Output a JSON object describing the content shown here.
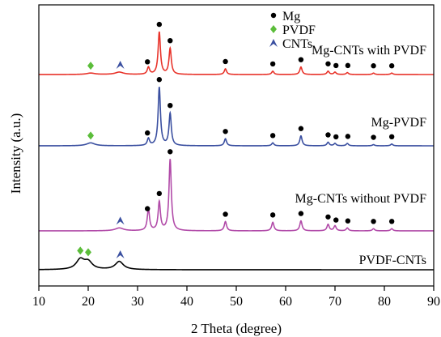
{
  "chart_data": {
    "type": "line",
    "xlabel": "2 Theta (degree)",
    "ylabel": "Intensity (a.u.)",
    "xlim": [
      10,
      90
    ],
    "x_ticks": [
      "10",
      "20",
      "30",
      "40",
      "50",
      "60",
      "70",
      "80",
      "90"
    ],
    "legend": [
      {
        "label": "Mg",
        "marker": "circle",
        "color": "#000000"
      },
      {
        "label": "PVDF",
        "marker": "diamond",
        "color": "#5bbd3a"
      },
      {
        "label": "CNTs",
        "marker": "arrow",
        "color": "#3a4fa0"
      }
    ],
    "legend_position": "top-center",
    "series": [
      {
        "name": "Mg-CNTs with PVDF",
        "color": "#e8332a",
        "baseline": 0.0,
        "peaks": [
          {
            "x": 20.5,
            "h": 0.03
          },
          {
            "x": 26.3,
            "h": 0.05
          },
          {
            "x": 32.2,
            "h": 0.15
          },
          {
            "x": 34.4,
            "h": 0.9
          },
          {
            "x": 36.6,
            "h": 0.55
          },
          {
            "x": 47.8,
            "h": 0.12
          },
          {
            "x": 57.4,
            "h": 0.07
          },
          {
            "x": 63.1,
            "h": 0.16
          },
          {
            "x": 68.6,
            "h": 0.07
          },
          {
            "x": 70.0,
            "h": 0.05
          },
          {
            "x": 72.5,
            "h": 0.04
          },
          {
            "x": 77.8,
            "h": 0.03
          },
          {
            "x": 81.5,
            "h": 0.03
          }
        ],
        "markers": [
          {
            "type": "diamond",
            "x": 20.5
          },
          {
            "type": "arrow",
            "x": 26.5
          },
          {
            "type": "circle",
            "x": 32.0
          },
          {
            "type": "circle",
            "x": 34.4
          },
          {
            "type": "circle",
            "x": 36.6
          },
          {
            "type": "circle",
            "x": 47.8
          },
          {
            "type": "circle",
            "x": 57.4
          },
          {
            "type": "circle",
            "x": 63.1
          },
          {
            "type": "circle",
            "x": 68.6
          },
          {
            "type": "circle",
            "x": 70.2
          },
          {
            "type": "circle",
            "x": 72.6
          },
          {
            "type": "circle",
            "x": 77.8
          },
          {
            "type": "circle",
            "x": 81.5
          }
        ]
      },
      {
        "name": "Mg-PVDF",
        "color": "#3a4fa0",
        "baseline": 0.0,
        "peaks": [
          {
            "x": 20.5,
            "h": 0.05
          },
          {
            "x": 32.2,
            "h": 0.12
          },
          {
            "x": 34.4,
            "h": 1.0
          },
          {
            "x": 36.6,
            "h": 0.55
          },
          {
            "x": 47.8,
            "h": 0.12
          },
          {
            "x": 57.4,
            "h": 0.05
          },
          {
            "x": 63.1,
            "h": 0.17
          },
          {
            "x": 68.6,
            "h": 0.06
          },
          {
            "x": 70.0,
            "h": 0.04
          },
          {
            "x": 72.5,
            "h": 0.04
          },
          {
            "x": 77.8,
            "h": 0.02
          },
          {
            "x": 81.5,
            "h": 0.03
          }
        ],
        "markers": [
          {
            "type": "diamond",
            "x": 20.5
          },
          {
            "type": "circle",
            "x": 32.0
          },
          {
            "type": "circle",
            "x": 34.4
          },
          {
            "type": "circle",
            "x": 36.6
          },
          {
            "type": "circle",
            "x": 47.8
          },
          {
            "type": "circle",
            "x": 57.4
          },
          {
            "type": "circle",
            "x": 63.1
          },
          {
            "type": "circle",
            "x": 68.6
          },
          {
            "type": "circle",
            "x": 70.2
          },
          {
            "type": "circle",
            "x": 72.6
          },
          {
            "type": "circle",
            "x": 77.8
          },
          {
            "type": "circle",
            "x": 81.5
          }
        ]
      },
      {
        "name": "Mg-CNTs without PVDF",
        "color": "#b14aa8",
        "baseline": 0.0,
        "peaks": [
          {
            "x": 26.3,
            "h": 0.04
          },
          {
            "x": 32.2,
            "h": 0.3
          },
          {
            "x": 34.4,
            "h": 0.4
          },
          {
            "x": 36.6,
            "h": 1.0
          },
          {
            "x": 47.8,
            "h": 0.13
          },
          {
            "x": 57.4,
            "h": 0.12
          },
          {
            "x": 63.1,
            "h": 0.14
          },
          {
            "x": 68.6,
            "h": 0.09
          },
          {
            "x": 70.0,
            "h": 0.07
          },
          {
            "x": 72.5,
            "h": 0.04
          },
          {
            "x": 77.8,
            "h": 0.03
          },
          {
            "x": 81.5,
            "h": 0.03
          }
        ],
        "markers": [
          {
            "type": "arrow",
            "x": 26.5
          },
          {
            "type": "circle",
            "x": 32.0
          },
          {
            "type": "circle",
            "x": 34.4
          },
          {
            "type": "circle",
            "x": 36.6
          },
          {
            "type": "circle",
            "x": 47.8
          },
          {
            "type": "circle",
            "x": 57.4
          },
          {
            "type": "circle",
            "x": 63.1
          },
          {
            "type": "circle",
            "x": 68.6
          },
          {
            "type": "circle",
            "x": 70.2
          },
          {
            "type": "circle",
            "x": 72.6
          },
          {
            "type": "circle",
            "x": 77.8
          },
          {
            "type": "circle",
            "x": 81.5
          }
        ]
      },
      {
        "name": "PVDF-CNTs",
        "color": "#000000",
        "baseline": 0.0,
        "peaks": [
          {
            "x": 18.4,
            "h": 0.12
          },
          {
            "x": 20.0,
            "h": 0.09
          },
          {
            "x": 26.3,
            "h": 0.1
          }
        ],
        "markers": [
          {
            "type": "diamond",
            "x": 18.4
          },
          {
            "type": "diamond",
            "x": 20.0
          },
          {
            "type": "arrow",
            "x": 26.5
          }
        ]
      }
    ]
  }
}
